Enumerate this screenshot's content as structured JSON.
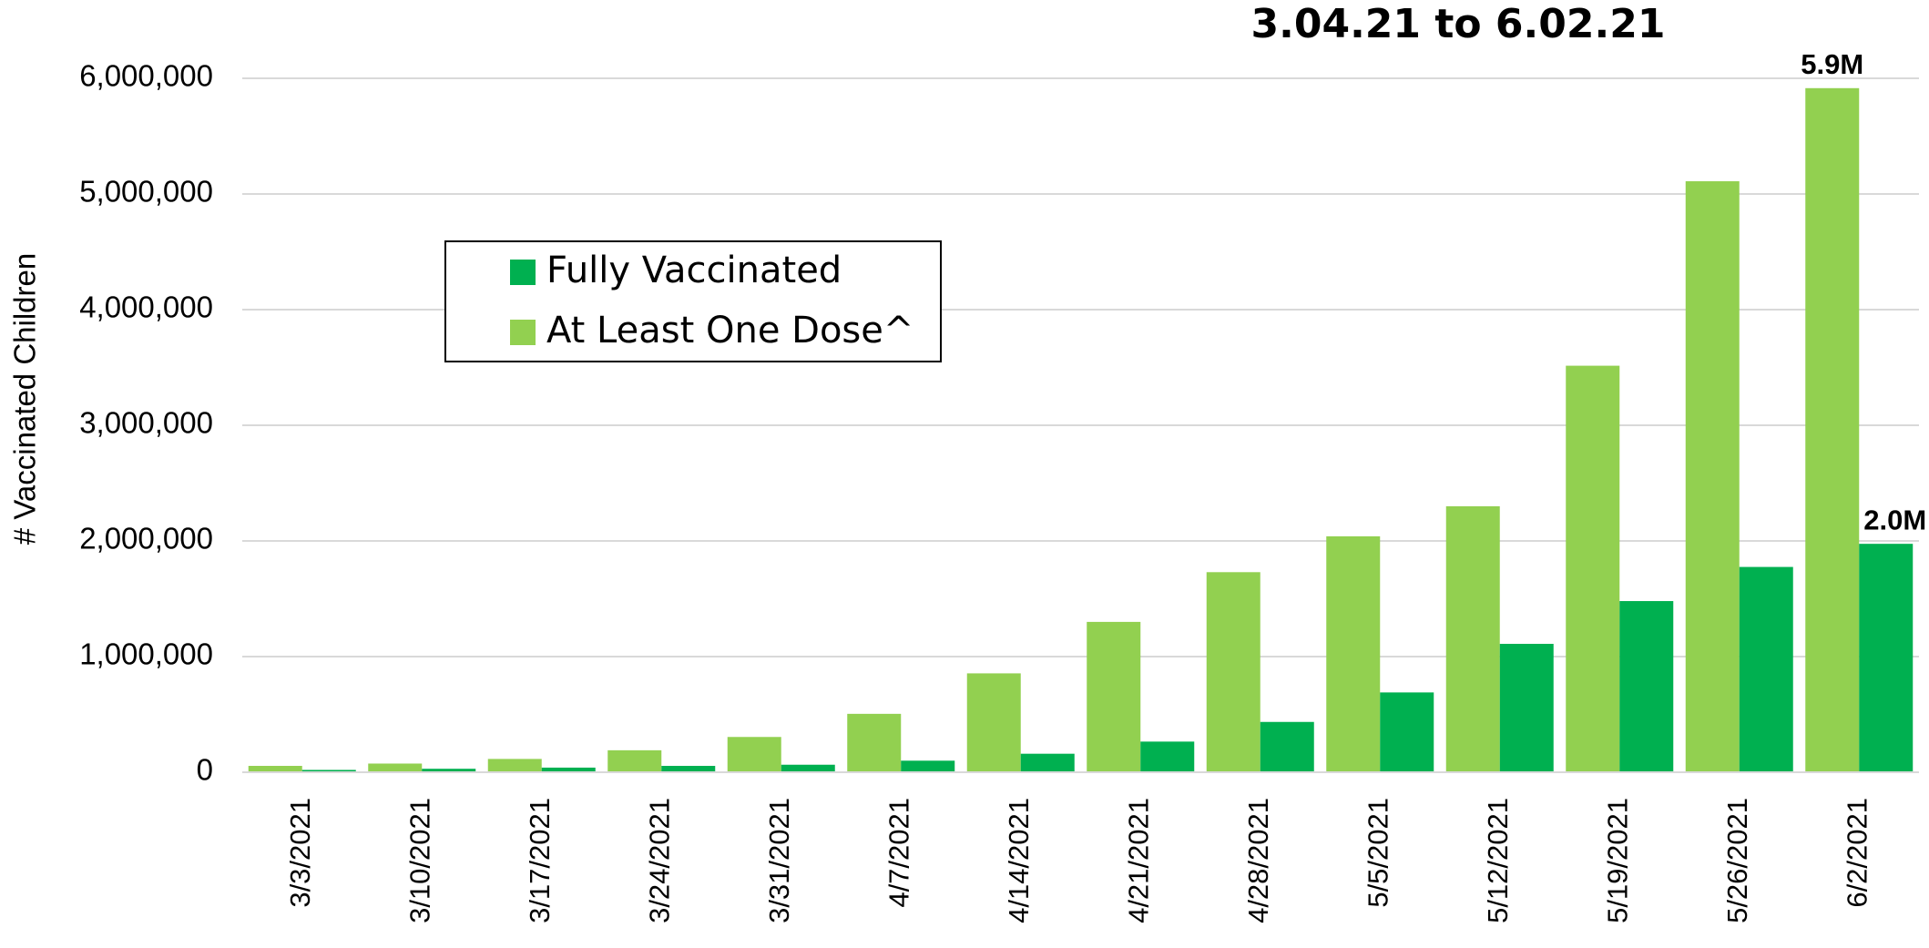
{
  "chart_data": {
    "type": "bar",
    "title": "3.04.21 to 6.02.21",
    "y_label": "# Vaccinated Children",
    "categories": [
      "3/3/2021",
      "3/10/2021",
      "3/17/2021",
      "3/24/2021",
      "3/31/2021",
      "4/7/2021",
      "4/14/2021",
      "4/21/2021",
      "4/28/2021",
      "5/5/2021",
      "5/12/2021",
      "5/19/2021",
      "5/26/2021",
      "6/2/2021"
    ],
    "series": [
      {
        "name": "At Least One Dose^",
        "color": "#92d050",
        "values": [
          55000,
          75000,
          115000,
          190000,
          305000,
          505000,
          855000,
          1300000,
          1730000,
          2040000,
          2300000,
          3515000,
          5110000,
          5915000
        ],
        "value_labels": [
          null,
          null,
          null,
          null,
          null,
          null,
          null,
          null,
          null,
          null,
          null,
          null,
          null,
          "5.9M"
        ]
      },
      {
        "name": "Fully Vaccinated",
        "color": "#00b050",
        "values": [
          20000,
          30000,
          40000,
          55000,
          65000,
          100000,
          160000,
          265000,
          435000,
          690000,
          1110000,
          1480000,
          1775000,
          1975000
        ],
        "value_labels": [
          null,
          null,
          null,
          null,
          null,
          null,
          null,
          null,
          null,
          null,
          null,
          null,
          null,
          "2.0M"
        ]
      }
    ],
    "legend_order": [
      1,
      0
    ],
    "ylim": [
      0,
      6000000
    ],
    "yticks": [
      0,
      {
        "value": 1000000,
        "label": "1,000,000"
      },
      {
        "value": 2000000,
        "label": "2,000,000"
      },
      {
        "value": 3000000,
        "label": "3,000,000"
      },
      {
        "value": 4000000,
        "label": "4,000,000"
      },
      {
        "value": 5000000,
        "label": "5,000,000"
      },
      {
        "value": 6000000,
        "label": "6,000,000"
      }
    ],
    "grid": true
  }
}
